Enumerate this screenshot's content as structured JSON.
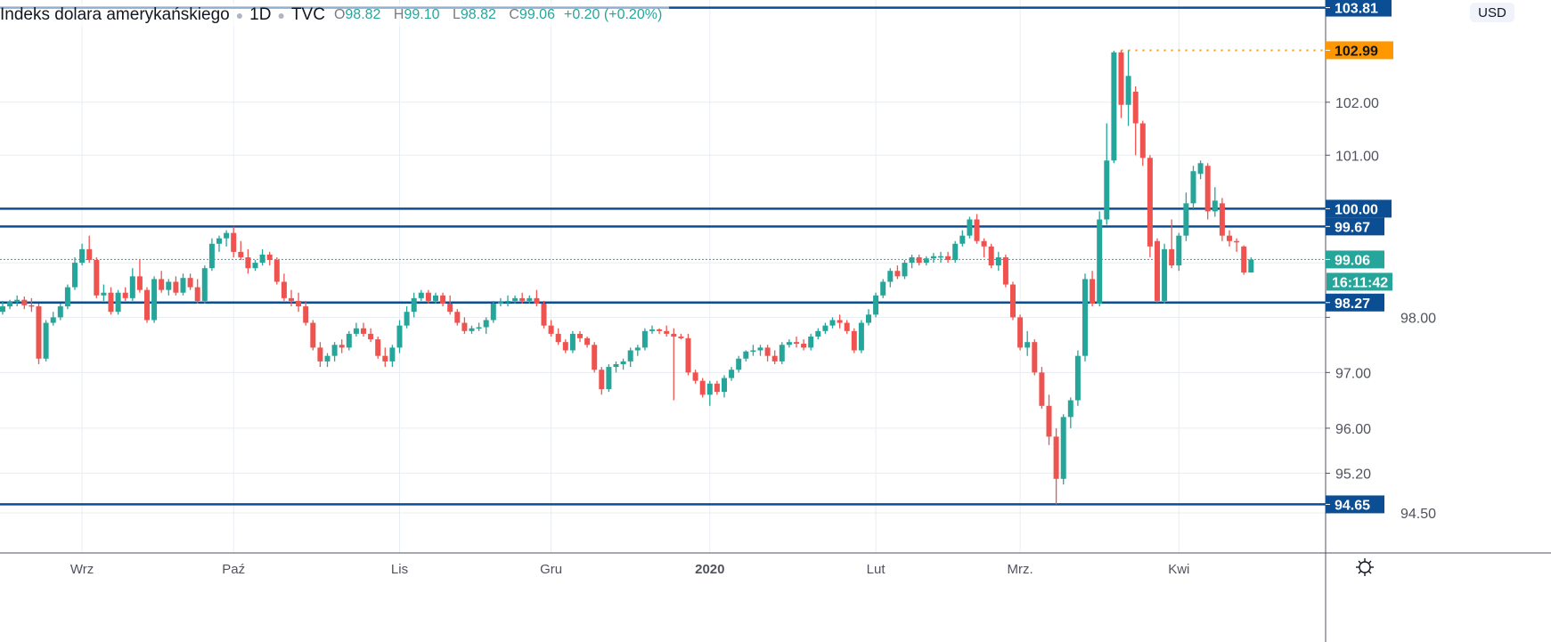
{
  "header": {
    "title": "Indeks dolara amerykańskiego",
    "interval": "1D",
    "exchange": "TVC",
    "open_label": "O",
    "open": "98.82",
    "high_label": "H",
    "high": "99.10",
    "low_label": "L",
    "low": "98.82",
    "close_label": "C",
    "close": "99.06",
    "change": "+0.20 (+0.20%)"
  },
  "currency_button": "USD",
  "countdown": "16:11:42",
  "colors": {
    "up": "#26a69a",
    "down": "#ef5350",
    "level": "#0c4e93",
    "high_marker": "#ff9800",
    "grid": "#e8edf2"
  },
  "chart_data": {
    "type": "candlestick",
    "title": "Indeks dolara amerykańskiego · 1D · TVC",
    "scale": "log",
    "ylim": [
      93.9,
      103.9
    ],
    "x_ticks": [
      {
        "label": "Wrz",
        "index": 11
      },
      {
        "label": "Paź",
        "index": 32
      },
      {
        "label": "Lis",
        "index": 55
      },
      {
        "label": "Gru",
        "index": 76
      },
      {
        "label": "2020",
        "index": 98
      },
      {
        "label": "Lut",
        "index": 121
      },
      {
        "label": "Mrz.",
        "index": 141
      },
      {
        "label": "Kwi",
        "index": 163
      }
    ],
    "y_ticks": [
      "102.00",
      "101.00",
      "98.00",
      "97.00",
      "96.00",
      "95.20",
      "94.50"
    ],
    "grid_prices": [
      102,
      101,
      100,
      99,
      98,
      97,
      96,
      95.2,
      94.5
    ],
    "levels": [
      "103.81",
      "100.00",
      "99.67",
      "98.27",
      "94.65"
    ],
    "high_marker": {
      "price": "102.99",
      "from_index": 155
    },
    "last_price": "99.06",
    "candles": [
      [
        98.1,
        98.3,
        98.05,
        98.2
      ],
      [
        98.2,
        98.32,
        98.15,
        98.28
      ],
      [
        98.28,
        98.4,
        98.2,
        98.32
      ],
      [
        98.32,
        98.38,
        98.15,
        98.22
      ],
      [
        98.22,
        98.35,
        98.1,
        98.2
      ],
      [
        98.2,
        98.25,
        97.15,
        97.25
      ],
      [
        97.25,
        97.95,
        97.2,
        97.9
      ],
      [
        97.9,
        98.1,
        97.85,
        98.0
      ],
      [
        98.0,
        98.25,
        97.95,
        98.2
      ],
      [
        98.2,
        98.6,
        98.15,
        98.55
      ],
      [
        98.55,
        99.1,
        98.5,
        99.0
      ],
      [
        99.0,
        99.35,
        98.95,
        99.25
      ],
      [
        99.25,
        99.5,
        99.0,
        99.05
      ],
      [
        99.05,
        99.1,
        98.35,
        98.4
      ],
      [
        98.4,
        98.6,
        98.3,
        98.45
      ],
      [
        98.45,
        98.55,
        98.05,
        98.1
      ],
      [
        98.1,
        98.5,
        98.05,
        98.45
      ],
      [
        98.45,
        98.55,
        98.3,
        98.35
      ],
      [
        98.35,
        98.9,
        98.3,
        98.75
      ],
      [
        98.75,
        99.05,
        98.45,
        98.5
      ],
      [
        98.5,
        98.55,
        97.9,
        97.95
      ],
      [
        97.95,
        98.75,
        97.9,
        98.7
      ],
      [
        98.7,
        98.85,
        98.45,
        98.5
      ],
      [
        98.5,
        98.7,
        98.4,
        98.65
      ],
      [
        98.65,
        98.75,
        98.4,
        98.45
      ],
      [
        98.45,
        98.8,
        98.4,
        98.72
      ],
      [
        98.72,
        98.8,
        98.5,
        98.55
      ],
      [
        98.55,
        98.7,
        98.25,
        98.3
      ],
      [
        98.3,
        98.95,
        98.25,
        98.9
      ],
      [
        98.9,
        99.45,
        98.85,
        99.35
      ],
      [
        99.35,
        99.5,
        99.2,
        99.45
      ],
      [
        99.45,
        99.6,
        99.3,
        99.55
      ],
      [
        99.55,
        99.67,
        99.1,
        99.2
      ],
      [
        99.2,
        99.4,
        99.05,
        99.1
      ],
      [
        99.1,
        99.25,
        98.8,
        98.9
      ],
      [
        98.9,
        99.05,
        98.85,
        99.0
      ],
      [
        99.0,
        99.25,
        98.95,
        99.15
      ],
      [
        99.15,
        99.2,
        98.95,
        99.05
      ],
      [
        99.05,
        99.1,
        98.6,
        98.65
      ],
      [
        98.65,
        98.8,
        98.3,
        98.35
      ],
      [
        98.35,
        98.5,
        98.2,
        98.3
      ],
      [
        98.3,
        98.45,
        98.1,
        98.2
      ],
      [
        98.2,
        98.3,
        97.85,
        97.9
      ],
      [
        97.9,
        97.95,
        97.4,
        97.45
      ],
      [
        97.45,
        97.55,
        97.1,
        97.2
      ],
      [
        97.2,
        97.35,
        97.1,
        97.3
      ],
      [
        97.3,
        97.55,
        97.2,
        97.5
      ],
      [
        97.5,
        97.6,
        97.35,
        97.45
      ],
      [
        97.45,
        97.75,
        97.4,
        97.7
      ],
      [
        97.7,
        97.9,
        97.65,
        97.8
      ],
      [
        97.8,
        97.9,
        97.65,
        97.7
      ],
      [
        97.7,
        97.8,
        97.55,
        97.6
      ],
      [
        97.6,
        97.65,
        97.25,
        97.3
      ],
      [
        97.3,
        97.45,
        97.1,
        97.2
      ],
      [
        97.2,
        97.5,
        97.1,
        97.45
      ],
      [
        97.45,
        97.95,
        97.35,
        97.85
      ],
      [
        97.85,
        98.2,
        97.8,
        98.1
      ],
      [
        98.1,
        98.45,
        98.0,
        98.35
      ],
      [
        98.35,
        98.5,
        98.3,
        98.45
      ],
      [
        98.45,
        98.5,
        98.25,
        98.3
      ],
      [
        98.3,
        98.45,
        98.25,
        98.4
      ],
      [
        98.4,
        98.45,
        98.2,
        98.25
      ],
      [
        98.25,
        98.4,
        98.05,
        98.1
      ],
      [
        98.1,
        98.15,
        97.85,
        97.9
      ],
      [
        97.9,
        98.0,
        97.7,
        97.75
      ],
      [
        97.75,
        97.85,
        97.7,
        97.8
      ],
      [
        97.8,
        97.9,
        97.75,
        97.82
      ],
      [
        97.82,
        98.0,
        97.7,
        97.95
      ],
      [
        97.95,
        98.3,
        97.9,
        98.25
      ],
      [
        98.25,
        98.35,
        98.2,
        98.28
      ],
      [
        98.28,
        98.4,
        98.2,
        98.3
      ],
      [
        98.3,
        98.4,
        98.25,
        98.35
      ],
      [
        98.35,
        98.45,
        98.25,
        98.3
      ],
      [
        98.3,
        98.4,
        98.25,
        98.35
      ],
      [
        98.35,
        98.5,
        98.2,
        98.25
      ],
      [
        98.25,
        98.3,
        97.8,
        97.85
      ],
      [
        97.85,
        97.95,
        97.65,
        97.7
      ],
      [
        97.7,
        97.8,
        97.5,
        97.55
      ],
      [
        97.55,
        97.6,
        97.35,
        97.4
      ],
      [
        97.4,
        97.75,
        97.35,
        97.7
      ],
      [
        97.7,
        97.75,
        97.55,
        97.62
      ],
      [
        97.62,
        97.65,
        97.45,
        97.5
      ],
      [
        97.5,
        97.55,
        97.0,
        97.05
      ],
      [
        97.05,
        97.1,
        96.6,
        96.7
      ],
      [
        96.7,
        97.15,
        96.65,
        97.1
      ],
      [
        97.1,
        97.2,
        97.0,
        97.15
      ],
      [
        97.15,
        97.25,
        97.05,
        97.2
      ],
      [
        97.2,
        97.45,
        97.1,
        97.4
      ],
      [
        97.4,
        97.5,
        97.3,
        97.45
      ],
      [
        97.45,
        97.8,
        97.4,
        97.75
      ],
      [
        97.75,
        97.85,
        97.7,
        97.78
      ],
      [
        97.78,
        97.8,
        97.7,
        97.75
      ],
      [
        97.75,
        97.85,
        97.65,
        97.7
      ],
      [
        97.7,
        97.8,
        96.5,
        97.65
      ],
      [
        97.65,
        97.7,
        97.6,
        97.62
      ],
      [
        97.62,
        97.7,
        96.95,
        97.0
      ],
      [
        97.0,
        97.05,
        96.8,
        96.85
      ],
      [
        96.85,
        96.9,
        96.55,
        96.6
      ],
      [
        96.6,
        96.85,
        96.4,
        96.8
      ],
      [
        96.8,
        96.85,
        96.6,
        96.65
      ],
      [
        96.65,
        96.95,
        96.55,
        96.9
      ],
      [
        96.9,
        97.1,
        96.85,
        97.05
      ],
      [
        97.05,
        97.3,
        97.0,
        97.25
      ],
      [
        97.25,
        97.4,
        97.2,
        97.38
      ],
      [
        97.38,
        97.5,
        97.3,
        97.4
      ],
      [
        97.4,
        97.5,
        97.3,
        97.45
      ],
      [
        97.45,
        97.5,
        97.2,
        97.3
      ],
      [
        97.3,
        97.4,
        97.15,
        97.2
      ],
      [
        97.2,
        97.55,
        97.15,
        97.5
      ],
      [
        97.5,
        97.6,
        97.45,
        97.55
      ],
      [
        97.55,
        97.65,
        97.45,
        97.52
      ],
      [
        97.52,
        97.6,
        97.4,
        97.45
      ],
      [
        97.45,
        97.7,
        97.4,
        97.65
      ],
      [
        97.65,
        97.8,
        97.6,
        97.75
      ],
      [
        97.75,
        97.9,
        97.7,
        97.85
      ],
      [
        97.85,
        98.0,
        97.8,
        97.95
      ],
      [
        97.95,
        98.05,
        97.8,
        97.9
      ],
      [
        97.9,
        97.95,
        97.7,
        97.75
      ],
      [
        97.75,
        97.8,
        97.35,
        97.4
      ],
      [
        97.4,
        97.95,
        97.35,
        97.9
      ],
      [
        97.9,
        98.15,
        97.85,
        98.05
      ],
      [
        98.05,
        98.45,
        98.0,
        98.4
      ],
      [
        98.4,
        98.7,
        98.35,
        98.65
      ],
      [
        98.65,
        98.9,
        98.55,
        98.85
      ],
      [
        98.85,
        98.95,
        98.7,
        98.75
      ],
      [
        98.75,
        99.05,
        98.7,
        99.0
      ],
      [
        99.0,
        99.15,
        98.9,
        99.1
      ],
      [
        99.1,
        99.15,
        98.95,
        99.0
      ],
      [
        99.0,
        99.12,
        98.95,
        99.08
      ],
      [
        99.08,
        99.18,
        99.0,
        99.12
      ],
      [
        99.12,
        99.2,
        99.0,
        99.12
      ],
      [
        99.12,
        99.2,
        99.0,
        99.05
      ],
      [
        99.05,
        99.4,
        99.0,
        99.35
      ],
      [
        99.35,
        99.6,
        99.3,
        99.5
      ],
      [
        99.5,
        99.85,
        99.45,
        99.8
      ],
      [
        99.8,
        99.9,
        99.35,
        99.4
      ],
      [
        99.4,
        99.45,
        99.1,
        99.3
      ],
      [
        99.3,
        99.35,
        98.9,
        98.95
      ],
      [
        98.95,
        99.2,
        98.85,
        99.1
      ],
      [
        99.1,
        99.15,
        98.55,
        98.6
      ],
      [
        98.6,
        98.65,
        97.95,
        98.0
      ],
      [
        98.0,
        98.05,
        97.4,
        97.45
      ],
      [
        97.45,
        97.75,
        97.3,
        97.55
      ],
      [
        97.55,
        97.6,
        96.95,
        97.0
      ],
      [
        97.0,
        97.1,
        96.35,
        96.4
      ],
      [
        96.4,
        96.6,
        95.7,
        95.85
      ],
      [
        95.85,
        96.0,
        94.65,
        95.1
      ],
      [
        95.1,
        96.25,
        95.0,
        96.2
      ],
      [
        96.2,
        96.55,
        96.0,
        96.5
      ],
      [
        96.5,
        97.4,
        96.4,
        97.3
      ],
      [
        97.3,
        98.8,
        97.2,
        98.7
      ],
      [
        98.7,
        98.85,
        98.2,
        98.25
      ],
      [
        98.25,
        99.95,
        98.2,
        99.8
      ],
      [
        99.8,
        101.6,
        99.7,
        100.9
      ],
      [
        100.9,
        102.98,
        100.85,
        102.95
      ],
      [
        102.95,
        102.99,
        101.7,
        101.95
      ],
      [
        101.95,
        102.99,
        101.55,
        102.5
      ],
      [
        102.2,
        102.3,
        101.0,
        101.6
      ],
      [
        101.6,
        101.65,
        100.8,
        100.95
      ],
      [
        100.95,
        101.0,
        99.1,
        99.3
      ],
      [
        99.4,
        99.45,
        98.27,
        98.3
      ],
      [
        98.3,
        99.35,
        98.25,
        99.25
      ],
      [
        99.25,
        99.8,
        98.9,
        98.95
      ],
      [
        98.95,
        99.55,
        98.85,
        99.5
      ],
      [
        99.5,
        100.3,
        99.4,
        100.1
      ],
      [
        100.1,
        100.8,
        100.0,
        100.7
      ],
      [
        100.65,
        100.9,
        100.55,
        100.85
      ],
      [
        100.8,
        100.85,
        99.8,
        99.95
      ],
      [
        99.95,
        100.4,
        99.85,
        100.15
      ],
      [
        100.1,
        100.2,
        99.4,
        99.5
      ],
      [
        99.5,
        99.6,
        99.3,
        99.4
      ],
      [
        99.4,
        99.45,
        99.2,
        99.38
      ],
      [
        99.3,
        99.32,
        98.78,
        98.82
      ],
      [
        98.82,
        99.1,
        98.82,
        99.06
      ]
    ]
  }
}
